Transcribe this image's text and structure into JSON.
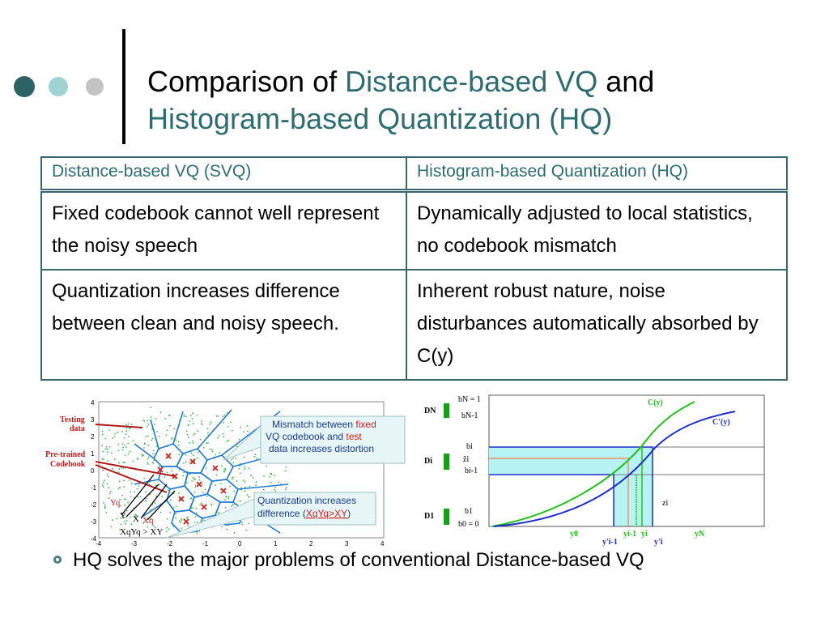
{
  "title": {
    "part1": "Comparison of ",
    "part2": "Distance-based VQ",
    "part3": " and",
    "line2": "Histogram-based Quantization (HQ)"
  },
  "table": {
    "headers": [
      "Distance-based VQ (SVQ)",
      "Histogram-based Quantization (HQ)"
    ],
    "rows": [
      [
        "Fixed codebook cannot well represent the noisy speech",
        "Dynamically adjusted to local statistics, no codebook mismatch"
      ],
      [
        "Quantization increases difference between clean and noisy speech.",
        "Inherent robust nature, noise disturbances automatically absorbed by C(y)"
      ]
    ]
  },
  "left_figure": {
    "label_testing": "Testing data",
    "label_pretrained": "Pre-trained Codebook",
    "callout1": {
      "pre": "Mismatch between ",
      "red1": "fixed",
      "mid": " VQ codebook and ",
      "red2": "test",
      "post": " data increases distortion"
    },
    "callout2": {
      "line1": "Quantization increases",
      "pre": "difference (",
      "red": "XqYq>XY",
      "post": ")"
    },
    "labels": {
      "yq": "Yq",
      "y": "Y",
      "x": "X",
      "xq": "Xq",
      "ineq": "XqYq > XY"
    },
    "x_ticks": [
      "-4",
      "-3",
      "-2",
      "-1",
      "0",
      "1",
      "2",
      "3",
      "4"
    ],
    "y_ticks": [
      "4",
      "3",
      "2",
      "1",
      "0",
      "-1",
      "-2",
      "-3",
      "-4"
    ]
  },
  "right_figure": {
    "curve1": "C(y)",
    "curve2": "C'(y)",
    "d_n": "DN",
    "d_i": "Di",
    "d_1": "D1",
    "b_n": "bN = 1",
    "b_n1": "bN-1",
    "b_i": "bi",
    "z_hat": "ẑi",
    "b_i1": "bi-1",
    "z_i": "zi",
    "b_1": "b1",
    "b_0": "b0 = 0",
    "y_0": "y0",
    "y_i1_prime": "y'i-1",
    "y_i1": "yi-1",
    "y_i": "yi",
    "y_i_prime": "y'i",
    "y_n": "yN"
  },
  "bullet": "HQ solves the major problems of conventional Distance-based VQ",
  "colors": {
    "accent": "#2e6d6f",
    "dot1": "#2e6366",
    "dot2": "#9fd3d4",
    "dot3": "#c3c3c3",
    "red": "#d11e1e",
    "green": "#22c01a",
    "blue": "#1e2cc9",
    "cyan_fill": "#b7f3f3"
  }
}
